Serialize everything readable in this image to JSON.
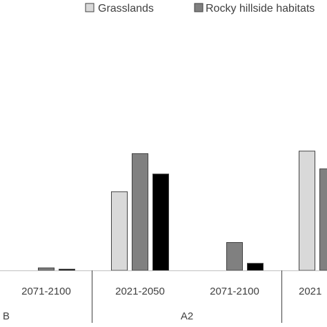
{
  "chart_data": {
    "type": "bar",
    "categories": [
      "2071-2100",
      "2021-2050",
      "2071-2100",
      "2021"
    ],
    "groups": [
      {
        "label": "B",
        "categories": [
          0
        ]
      },
      {
        "label": "A2",
        "categories": [
          1,
          2
        ]
      }
    ],
    "series": [
      {
        "name": "Grasslands",
        "color": "#d9d9d9",
        "values": [
          0,
          31,
          0,
          47
        ]
      },
      {
        "name": "Rocky hillside habitats",
        "color": "#808080",
        "values": [
          1,
          46,
          11,
          40
        ]
      },
      {
        "name": "",
        "color": "#000000",
        "values": [
          0.5,
          38,
          2.8,
          null
        ]
      }
    ],
    "ylim": [
      0,
      100
    ],
    "grid": false,
    "legend_position": "top"
  }
}
